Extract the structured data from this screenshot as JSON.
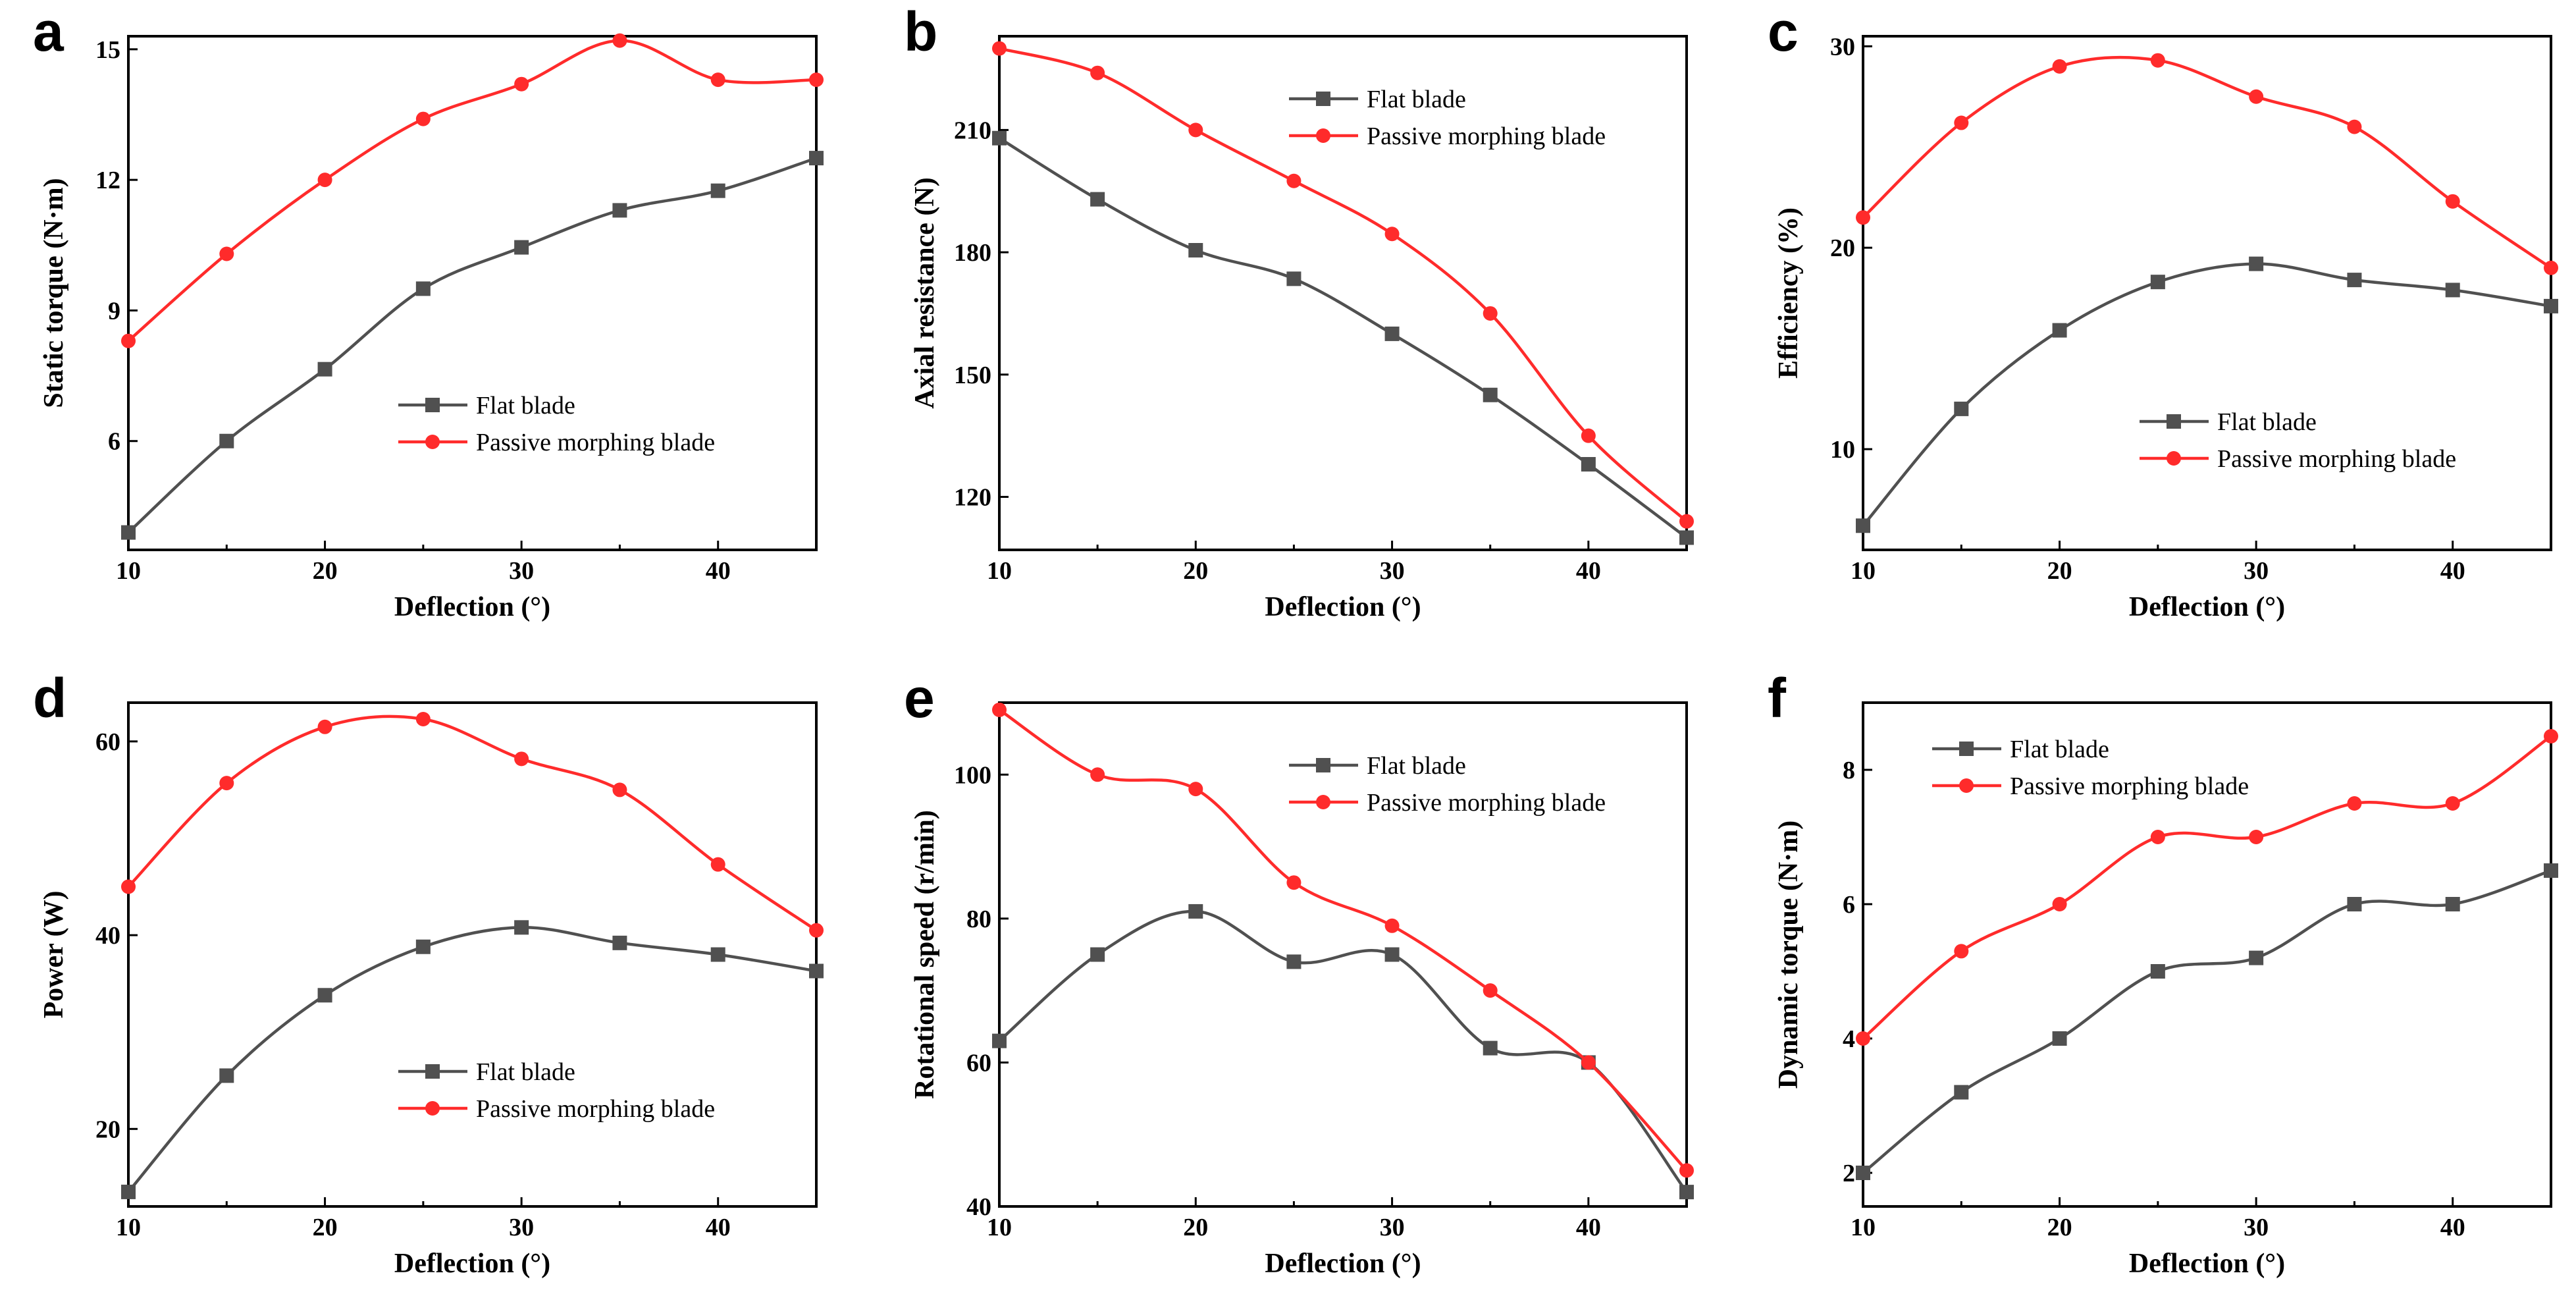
{
  "figure": {
    "colors": {
      "flat": "#505050",
      "morph": "#ff2b2b",
      "axis": "#000000"
    },
    "x_axis_title": "Deflection (°)",
    "x_ticks": [
      10,
      20,
      30,
      40
    ],
    "x_tick_labels": [
      "10",
      "20",
      "30",
      "40"
    ]
  },
  "chart_data": [
    {
      "panel": "a",
      "type": "line",
      "title": "",
      "xlabel": "Deflection (°)",
      "ylabel": "Static torque (N·m)",
      "xlim": [
        10,
        45
      ],
      "ylim": [
        3.5,
        15.3
      ],
      "yticks": [
        6,
        9,
        12,
        15
      ],
      "ytick_labels": [
        "6",
        "9",
        "12",
        "15"
      ],
      "legend": "lower-center",
      "x": [
        10,
        15,
        20,
        25,
        30,
        35,
        40,
        45
      ],
      "series": [
        {
          "name": "Flat blade",
          "marker": "square",
          "values": [
            3.9,
            6.0,
            7.65,
            9.5,
            10.45,
            11.3,
            11.75,
            12.5
          ]
        },
        {
          "name": "Passive morphing blade",
          "marker": "circle",
          "values": [
            8.3,
            10.3,
            12.0,
            13.4,
            14.2,
            15.2,
            14.3,
            14.3
          ]
        }
      ]
    },
    {
      "panel": "b",
      "type": "line",
      "title": "",
      "xlabel": "Deflection (°)",
      "ylabel": "Axial resistance (N)",
      "xlim": [
        10,
        45
      ],
      "ylim": [
        107,
        233
      ],
      "yticks": [
        120,
        150,
        180,
        210
      ],
      "ytick_labels": [
        "120",
        "150",
        "180",
        "210"
      ],
      "legend": "top-right",
      "x": [
        10,
        15,
        20,
        25,
        30,
        35,
        40,
        45
      ],
      "series": [
        {
          "name": "Flat blade",
          "marker": "square",
          "values": [
            208,
            193,
            180.5,
            173.5,
            160,
            145,
            128,
            110
          ]
        },
        {
          "name": "Passive morphing blade",
          "marker": "circle",
          "values": [
            230,
            224,
            210,
            197.5,
            184.5,
            165,
            135,
            114
          ]
        }
      ]
    },
    {
      "panel": "c",
      "type": "line",
      "title": "",
      "xlabel": "Deflection (°)",
      "ylabel": "Efficiency (%)",
      "xlim": [
        10,
        45
      ],
      "ylim": [
        5,
        30.5
      ],
      "yticks": [
        10,
        20,
        30
      ],
      "ytick_labels": [
        "10",
        "20",
        "30"
      ],
      "legend": "lower-right",
      "x": [
        10,
        15,
        20,
        25,
        30,
        35,
        40,
        45
      ],
      "series": [
        {
          "name": "Flat blade",
          "marker": "square",
          "values": [
            6.2,
            12.0,
            15.9,
            18.3,
            19.2,
            18.4,
            17.9,
            17.1
          ]
        },
        {
          "name": "Passive morphing blade",
          "marker": "circle",
          "values": [
            21.5,
            26.2,
            29.0,
            29.3,
            27.5,
            26.0,
            22.3,
            19.0
          ]
        }
      ]
    },
    {
      "panel": "d",
      "type": "line",
      "title": "",
      "xlabel": "Deflection (°)",
      "ylabel": "Power (W)",
      "xlim": [
        10,
        45
      ],
      "ylim": [
        12,
        64
      ],
      "yticks": [
        20,
        40,
        60
      ],
      "ytick_labels": [
        "20",
        "40",
        "60"
      ],
      "legend": "lower-center",
      "x": [
        10,
        15,
        20,
        25,
        30,
        35,
        40,
        45
      ],
      "series": [
        {
          "name": "Flat blade",
          "marker": "square",
          "values": [
            13.5,
            25.5,
            33.8,
            38.8,
            40.8,
            39.2,
            38.0,
            36.3
          ]
        },
        {
          "name": "Passive morphing blade",
          "marker": "circle",
          "values": [
            45.0,
            55.7,
            61.5,
            62.3,
            58.2,
            55.0,
            47.3,
            40.5
          ]
        }
      ]
    },
    {
      "panel": "e",
      "type": "line",
      "title": "",
      "xlabel": "Deflection (°)",
      "ylabel": "Rotational speed (r/min)",
      "xlim": [
        10,
        45
      ],
      "ylim": [
        40,
        110
      ],
      "yticks": [
        40,
        60,
        80,
        100
      ],
      "ytick_labels": [
        "40",
        "60",
        "80",
        "100"
      ],
      "legend": "top-right",
      "x": [
        10,
        15,
        20,
        25,
        30,
        35,
        40,
        45
      ],
      "series": [
        {
          "name": "Flat blade",
          "marker": "square",
          "values": [
            63,
            75,
            81,
            74,
            75,
            62,
            60,
            42
          ]
        },
        {
          "name": "Passive morphing blade",
          "marker": "circle",
          "values": [
            109,
            100,
            98,
            85,
            79,
            70,
            60,
            45
          ]
        }
      ]
    },
    {
      "panel": "f",
      "type": "line",
      "title": "",
      "xlabel": "Deflection (°)",
      "ylabel": "Dynamic torque (N·m)",
      "xlim": [
        10,
        45
      ],
      "ylim": [
        1.5,
        9.0
      ],
      "yticks": [
        2,
        4,
        6,
        8
      ],
      "ytick_labels": [
        "2",
        "4",
        "6",
        "8"
      ],
      "legend": "top-left",
      "x": [
        10,
        15,
        20,
        25,
        30,
        35,
        40,
        45
      ],
      "series": [
        {
          "name": "Flat blade",
          "marker": "square",
          "values": [
            2.0,
            3.2,
            4.0,
            5.0,
            5.2,
            6.0,
            6.0,
            6.5
          ]
        },
        {
          "name": "Passive morphing blade",
          "marker": "circle",
          "values": [
            4.0,
            5.3,
            6.0,
            7.0,
            7.0,
            7.5,
            7.5,
            8.5
          ]
        }
      ]
    }
  ]
}
